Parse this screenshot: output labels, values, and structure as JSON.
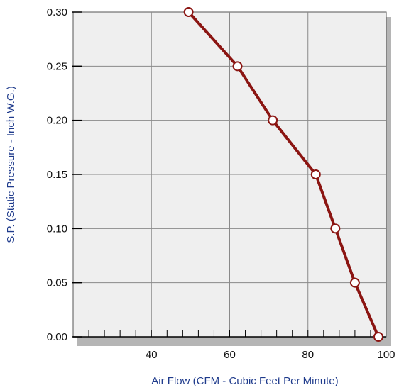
{
  "chart_data": {
    "type": "line",
    "title": "",
    "xlabel": "Air Flow (CFM - Cubic Feet Per Minute)",
    "ylabel": "S.P. (Static Pressure - Inch W.G.)",
    "xlim": [
      20,
      100
    ],
    "ylim": [
      0,
      0.3
    ],
    "xticks": [
      40,
      60,
      80,
      100
    ],
    "xtick_labels": [
      "40",
      "60",
      "80",
      "100"
    ],
    "yticks": [
      0,
      0.05,
      0.1,
      0.15,
      0.2,
      0.25,
      0.3
    ],
    "ytick_labels": [
      "0.00",
      "0.05",
      "0.10",
      "0.15",
      "0.20",
      "0.25",
      "0.30"
    ],
    "grid": true,
    "series": [
      {
        "x": [
          49.5,
          62,
          71,
          82,
          87,
          92,
          98
        ],
        "y": [
          0.3,
          0.25,
          0.2,
          0.15,
          0.1,
          0.05,
          0.0
        ]
      }
    ],
    "colors": {
      "line": "#8b1512",
      "marker_fill": "#ffffff",
      "plot_background": "#efefef",
      "grid": "#8a8a8a",
      "axis_title": "#1f3b8c",
      "shadow": "#b5b5b5"
    }
  }
}
